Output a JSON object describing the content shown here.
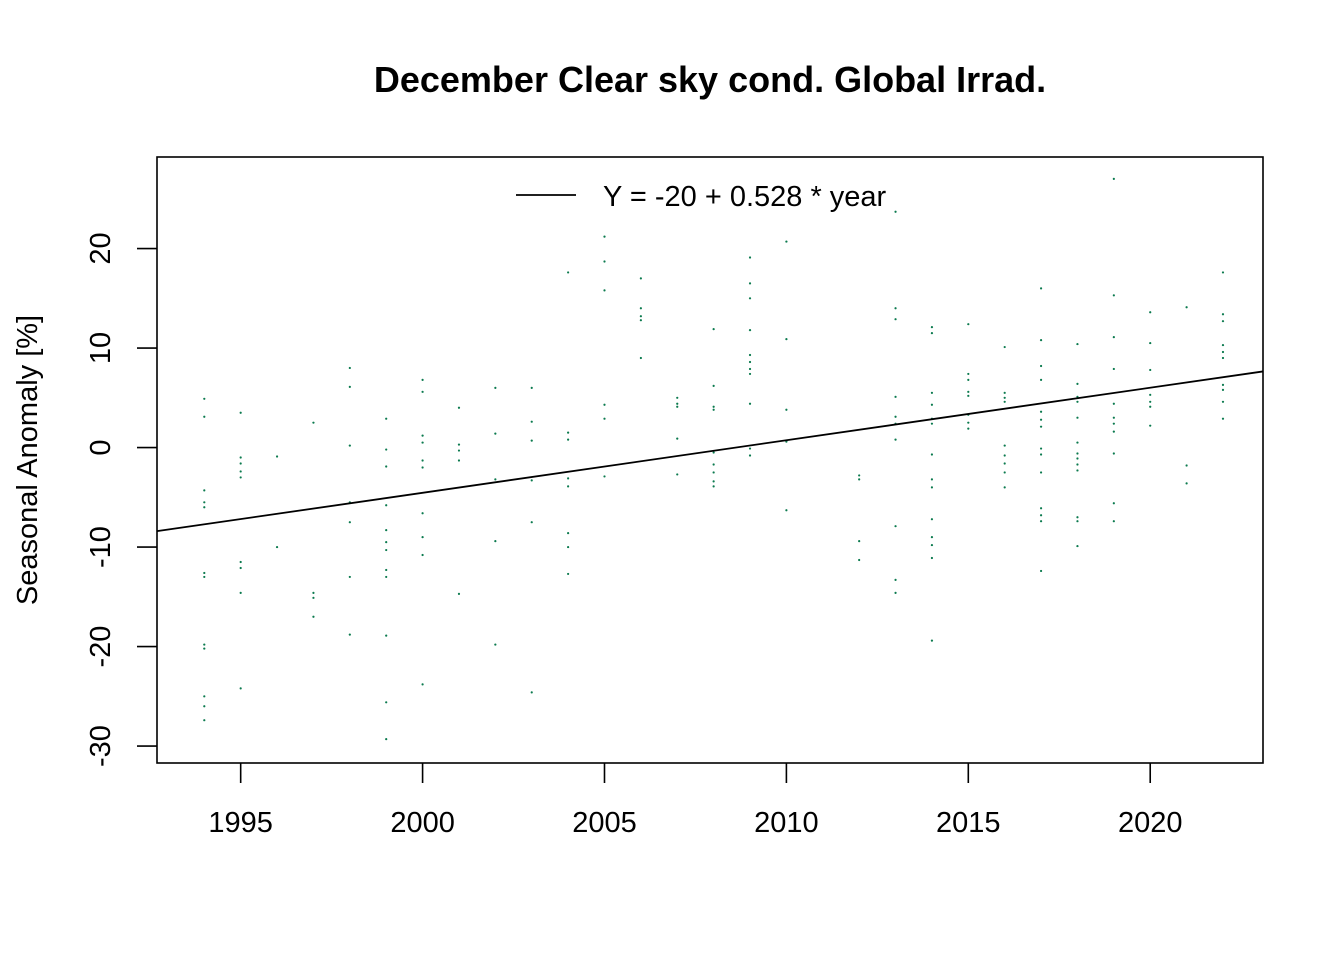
{
  "chart_data": {
    "type": "scatter",
    "title": "December Clear sky cond. Global Irrad.",
    "xlabel": "",
    "ylabel": "Seasonal Anomaly [%]",
    "xlim": [
      1992.7,
      2023.1
    ],
    "ylim": [
      -31.7,
      29.2
    ],
    "x_ticks": [
      1995,
      2000,
      2005,
      2010,
      2015,
      2020
    ],
    "y_ticks": [
      -30,
      -20,
      -10,
      0,
      10,
      20
    ],
    "grid": false,
    "legend_position": "top",
    "legend": [
      {
        "label": "Y = -20 + 0.528 * year",
        "type": "line"
      }
    ],
    "trend_line": {
      "intercept_at_1992_7": -8.4,
      "slope_per_year": 0.528,
      "x_range": [
        1992.7,
        2023.1
      ]
    },
    "points_color": "#0b7a4e",
    "line_color": "#000000",
    "series": [
      {
        "values": [
          [
            1994,
            4.9
          ],
          [
            1994,
            3.1
          ],
          [
            1994,
            -4.3
          ],
          [
            1994,
            -5.5
          ],
          [
            1994,
            -6.0
          ],
          [
            1994,
            -12.6
          ],
          [
            1994,
            -13.0
          ],
          [
            1994,
            -19.8
          ],
          [
            1994,
            -20.2
          ],
          [
            1994,
            -25.0
          ],
          [
            1994,
            -26.0
          ],
          [
            1994,
            -27.4
          ],
          [
            1995,
            3.5
          ],
          [
            1995,
            -1.0
          ],
          [
            1995,
            -1.6
          ],
          [
            1995,
            -2.4
          ],
          [
            1995,
            -3.0
          ],
          [
            1995,
            -11.5
          ],
          [
            1995,
            -12.1
          ],
          [
            1995,
            -14.6
          ],
          [
            1995,
            -24.2
          ],
          [
            1996,
            -0.9
          ],
          [
            1996,
            -10.0
          ],
          [
            1997,
            2.5
          ],
          [
            1997,
            -14.6
          ],
          [
            1997,
            -15.1
          ],
          [
            1997,
            -17.0
          ],
          [
            1998,
            8.0
          ],
          [
            1998,
            6.1
          ],
          [
            1998,
            0.2
          ],
          [
            1998,
            -5.5
          ],
          [
            1998,
            -7.5
          ],
          [
            1998,
            -13.0
          ],
          [
            1998,
            -18.8
          ],
          [
            1999,
            2.9
          ],
          [
            1999,
            -0.2
          ],
          [
            1999,
            -1.9
          ],
          [
            1999,
            -5.8
          ],
          [
            1999,
            -8.3
          ],
          [
            1999,
            -9.5
          ],
          [
            1999,
            -10.3
          ],
          [
            1999,
            -12.3
          ],
          [
            1999,
            -13.0
          ],
          [
            1999,
            -18.9
          ],
          [
            1999,
            -25.6
          ],
          [
            1999,
            -29.3
          ],
          [
            2000,
            6.8
          ],
          [
            2000,
            5.6
          ],
          [
            2000,
            1.2
          ],
          [
            2000,
            0.5
          ],
          [
            2000,
            -1.3
          ],
          [
            2000,
            -2.0
          ],
          [
            2000,
            -6.6
          ],
          [
            2000,
            -9.0
          ],
          [
            2000,
            -10.8
          ],
          [
            2000,
            -23.8
          ],
          [
            2001,
            4.0
          ],
          [
            2001,
            0.3
          ],
          [
            2001,
            -0.3
          ],
          [
            2001,
            -1.3
          ],
          [
            2001,
            -14.7
          ],
          [
            2002,
            6.0
          ],
          [
            2002,
            1.4
          ],
          [
            2002,
            -3.2
          ],
          [
            2002,
            -9.4
          ],
          [
            2002,
            -19.8
          ],
          [
            2003,
            6.0
          ],
          [
            2003,
            2.6
          ],
          [
            2003,
            0.7
          ],
          [
            2003,
            -3.3
          ],
          [
            2003,
            -7.5
          ],
          [
            2003,
            -24.6
          ],
          [
            2004,
            17.6
          ],
          [
            2004,
            1.5
          ],
          [
            2004,
            0.8
          ],
          [
            2004,
            -3.1
          ],
          [
            2004,
            -3.9
          ],
          [
            2004,
            -8.6
          ],
          [
            2004,
            -10.0
          ],
          [
            2004,
            -12.7
          ],
          [
            2005,
            21.2
          ],
          [
            2005,
            18.7
          ],
          [
            2005,
            15.8
          ],
          [
            2005,
            4.3
          ],
          [
            2005,
            2.9
          ],
          [
            2005,
            -2.9
          ],
          [
            2006,
            17.0
          ],
          [
            2006,
            14.0
          ],
          [
            2006,
            13.2
          ],
          [
            2006,
            12.8
          ],
          [
            2006,
            9.0
          ],
          [
            2007,
            5.0
          ],
          [
            2007,
            4.4
          ],
          [
            2007,
            4.1
          ],
          [
            2007,
            0.9
          ],
          [
            2007,
            -2.7
          ],
          [
            2008,
            11.9
          ],
          [
            2008,
            6.2
          ],
          [
            2008,
            4.1
          ],
          [
            2008,
            3.8
          ],
          [
            2008,
            -0.5
          ],
          [
            2008,
            -1.7
          ],
          [
            2008,
            -2.5
          ],
          [
            2008,
            -3.4
          ],
          [
            2008,
            -3.9
          ],
          [
            2009,
            19.1
          ],
          [
            2009,
            16.5
          ],
          [
            2009,
            15.0
          ],
          [
            2009,
            11.8
          ],
          [
            2009,
            9.3
          ],
          [
            2009,
            8.6
          ],
          [
            2009,
            7.9
          ],
          [
            2009,
            7.4
          ],
          [
            2009,
            4.4
          ],
          [
            2009,
            -0.1
          ],
          [
            2009,
            -0.8
          ],
          [
            2010,
            20.7
          ],
          [
            2010,
            10.9
          ],
          [
            2010,
            3.8
          ],
          [
            2010,
            0.6
          ],
          [
            2010,
            -6.3
          ],
          [
            2012,
            -2.8
          ],
          [
            2012,
            -3.2
          ],
          [
            2012,
            -9.4
          ],
          [
            2012,
            -11.3
          ],
          [
            2013,
            23.7
          ],
          [
            2013,
            14.0
          ],
          [
            2013,
            12.9
          ],
          [
            2013,
            5.1
          ],
          [
            2013,
            3.1
          ],
          [
            2013,
            2.4
          ],
          [
            2013,
            0.8
          ],
          [
            2013,
            -7.9
          ],
          [
            2013,
            -13.3
          ],
          [
            2013,
            -14.6
          ],
          [
            2014,
            12.1
          ],
          [
            2014,
            11.5
          ],
          [
            2014,
            5.5
          ],
          [
            2014,
            4.3
          ],
          [
            2014,
            2.9
          ],
          [
            2014,
            2.4
          ],
          [
            2014,
            -0.7
          ],
          [
            2014,
            -3.2
          ],
          [
            2014,
            -4.0
          ],
          [
            2014,
            -7.2
          ],
          [
            2014,
            -9.0
          ],
          [
            2014,
            -9.8
          ],
          [
            2014,
            -11.1
          ],
          [
            2014,
            -19.4
          ],
          [
            2015,
            12.4
          ],
          [
            2015,
            7.4
          ],
          [
            2015,
            6.8
          ],
          [
            2015,
            5.6
          ],
          [
            2015,
            5.2
          ],
          [
            2015,
            3.3
          ],
          [
            2015,
            2.5
          ],
          [
            2015,
            1.9
          ],
          [
            2016,
            10.1
          ],
          [
            2016,
            5.5
          ],
          [
            2016,
            5.0
          ],
          [
            2016,
            4.6
          ],
          [
            2016,
            0.2
          ],
          [
            2016,
            -0.8
          ],
          [
            2016,
            -1.6
          ],
          [
            2016,
            -2.5
          ],
          [
            2016,
            -4.0
          ],
          [
            2017,
            16.0
          ],
          [
            2017,
            10.8
          ],
          [
            2017,
            8.2
          ],
          [
            2017,
            6.8
          ],
          [
            2017,
            3.6
          ],
          [
            2017,
            2.8
          ],
          [
            2017,
            2.1
          ],
          [
            2017,
            -0.1
          ],
          [
            2017,
            -0.7
          ],
          [
            2017,
            -2.5
          ],
          [
            2017,
            -6.1
          ],
          [
            2017,
            -6.8
          ],
          [
            2017,
            -7.4
          ],
          [
            2017,
            -12.4
          ],
          [
            2018,
            10.4
          ],
          [
            2018,
            6.4
          ],
          [
            2018,
            5.1
          ],
          [
            2018,
            4.6
          ],
          [
            2018,
            3.0
          ],
          [
            2018,
            0.5
          ],
          [
            2018,
            -0.6
          ],
          [
            2018,
            -1.1
          ],
          [
            2018,
            -1.7
          ],
          [
            2018,
            -2.3
          ],
          [
            2018,
            -7.0
          ],
          [
            2018,
            -7.4
          ],
          [
            2018,
            -9.9
          ],
          [
            2019,
            27.0
          ],
          [
            2019,
            15.3
          ],
          [
            2019,
            11.1
          ],
          [
            2019,
            7.9
          ],
          [
            2019,
            4.4
          ],
          [
            2019,
            3.0
          ],
          [
            2019,
            2.4
          ],
          [
            2019,
            1.6
          ],
          [
            2019,
            -0.6
          ],
          [
            2019,
            -5.6
          ],
          [
            2019,
            -7.4
          ],
          [
            2020,
            13.6
          ],
          [
            2020,
            10.5
          ],
          [
            2020,
            7.8
          ],
          [
            2020,
            5.3
          ],
          [
            2020,
            4.6
          ],
          [
            2020,
            4.1
          ],
          [
            2020,
            2.2
          ],
          [
            2021,
            14.1
          ],
          [
            2021,
            -1.8
          ],
          [
            2021,
            -3.6
          ],
          [
            2022,
            17.6
          ],
          [
            2022,
            13.4
          ],
          [
            2022,
            12.7
          ],
          [
            2022,
            10.3
          ],
          [
            2022,
            9.6
          ],
          [
            2022,
            9.0
          ],
          [
            2022,
            6.3
          ],
          [
            2022,
            5.8
          ],
          [
            2022,
            4.6
          ],
          [
            2022,
            2.9
          ]
        ]
      }
    ]
  }
}
